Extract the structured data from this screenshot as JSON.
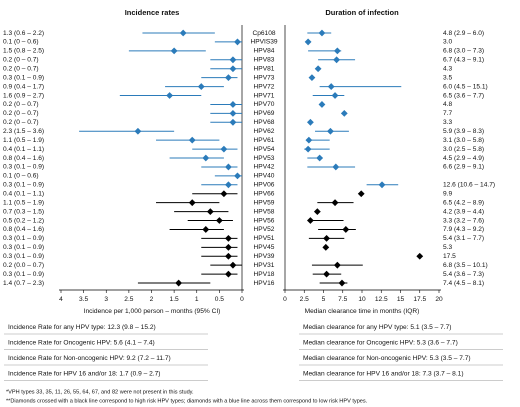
{
  "chart_data": [
    {
      "type": "forest",
      "title": "Incidence rates",
      "xlabel": "Incidence per 1,000 person – months (95% CI)",
      "xlim": [
        4,
        0
      ],
      "xticks": [
        4,
        3.5,
        3,
        2.5,
        2,
        1.5,
        1,
        0.5,
        0
      ],
      "categories": [
        "Cp6108",
        "HPVIS39",
        "HPV84",
        "HPV83",
        "HPV81",
        "HPV73",
        "HPV72",
        "HPV71",
        "HPV70",
        "HPV69",
        "HPV68",
        "HPV62",
        "HPV61",
        "HPV54",
        "HPV53",
        "HPV42",
        "HPV40",
        "HPV06",
        "HPV66",
        "HPV59",
        "HPV58",
        "HPV56",
        "HPV52",
        "HPV51",
        "HPV45",
        "HPV39",
        "HPV31",
        "HPV18",
        "HPV16"
      ],
      "colors": [
        "#2b7bba",
        "#2b7bba",
        "#2b7bba",
        "#2b7bba",
        "#2b7bba",
        "#2b7bba",
        "#2b7bba",
        "#2b7bba",
        "#2b7bba",
        "#2b7bba",
        "#2b7bba",
        "#2b7bba",
        "#2b7bba",
        "#2b7bba",
        "#2b7bba",
        "#2b7bba",
        "#2b7bba",
        "#2b7bba",
        "#000000",
        "#000000",
        "#000000",
        "#000000",
        "#000000",
        "#000000",
        "#000000",
        "#000000",
        "#000000",
        "#000000",
        "#000000"
      ],
      "values": [
        1.3,
        0.1,
        1.5,
        0.2,
        0.2,
        0.3,
        0.9,
        1.6,
        0.2,
        0.2,
        0.2,
        2.3,
        1.1,
        0.4,
        0.8,
        0.3,
        0.1,
        0.3,
        0.4,
        1.1,
        0.7,
        0.5,
        0.8,
        0.3,
        0.3,
        0.3,
        0.2,
        0.3,
        1.4
      ],
      "lower": [
        0.6,
        0,
        0.8,
        0,
        0,
        0.1,
        0.4,
        0.9,
        0,
        0,
        0,
        1.5,
        0.5,
        0.1,
        0.4,
        0.1,
        0,
        0.1,
        0.1,
        0.5,
        0.3,
        0.2,
        0.4,
        0.1,
        0.1,
        0.1,
        0.0,
        0.1,
        0.7
      ],
      "upper": [
        2.2,
        0.6,
        2.5,
        0.7,
        0.7,
        0.9,
        1.7,
        2.7,
        0.7,
        0.7,
        0.7,
        3.6,
        1.9,
        1.1,
        1.6,
        0.9,
        0.6,
        0.9,
        1.1,
        1.9,
        1.5,
        1.2,
        1.6,
        0.9,
        0.9,
        0.9,
        0.7,
        0.9,
        2.3
      ],
      "value_labels": [
        "1.3 (0.6 – 2.2)",
        "0.1 (0 – 0.6)",
        "1.5 (0.8 – 2.5)",
        "0.2 (0 – 0.7)",
        "0.2 (0 – 0.7)",
        "0.3 (0.1 – 0.9)",
        "0.9 (0.4 – 1.7)",
        "1.6 (0.9 – 2.7)",
        "0.2 (0 – 0.7)",
        "0.2 (0 – 0.7)",
        "0.2 (0 – 0.7)",
        "2.3 (1.5 – 3.6)",
        "1.1 (0.5 – 1.9)",
        "0.4 (0.1 – 1.1)",
        "0.8 (0.4 – 1.6)",
        "0.3 (0.1 – 0.9)",
        "0.1 (0 – 0.6)",
        "0.3 (0.1 – 0.9)",
        "0.4 (0.1 – 1.1)",
        "1.1 (0.5 – 1.9)",
        "0.7 (0.3 – 1.5)",
        "0.5 (0.2 – 1.2)",
        "0.8 (0.4 – 1.6)",
        "0.3 (0.1 – 0.9)",
        "0.3 (0.1 – 0.9)",
        "0.3 (0.1 – 0.9)",
        "0.2 (0.0 – 0.7)",
        "0.3 (0.1 – 0.9)",
        "1.4 (0.7 – 2.3)"
      ],
      "summary": [
        "Incidence Rate for any HPV type: 12.3 (9.8 – 15.2)",
        "Incidence Rate for Oncogenic HPV: 5.6 (4.1 – 7.4)",
        "Incidence Rate for Non-oncogenic HPV: 9.2 (7.2 – 11.7)",
        "Incidence Rate for HPV 16 and/or 18: 1.7 (0.9 – 2.7)"
      ]
    },
    {
      "type": "forest",
      "title": "Duration of infection",
      "xlabel": "Median clearance time in months (IQR)",
      "xlim": [
        0,
        20
      ],
      "xticks": [
        0,
        2.5,
        5,
        7.5,
        10,
        12.5,
        15,
        17.5,
        20
      ],
      "values": [
        4.8,
        3.0,
        6.8,
        6.7,
        4.3,
        3.5,
        6.0,
        6.5,
        4.8,
        7.7,
        3.3,
        5.9,
        3.1,
        3.0,
        4.5,
        6.6,
        null,
        12.6,
        9.9,
        6.5,
        4.2,
        3.3,
        7.9,
        5.4,
        5.3,
        17.5,
        6.8,
        5.4,
        7.4
      ],
      "lower": [
        2.9,
        null,
        3.0,
        4.3,
        null,
        null,
        4.5,
        3.6,
        null,
        null,
        null,
        3.9,
        3.0,
        2.5,
        2.9,
        2.9,
        null,
        10.6,
        null,
        4.2,
        3.9,
        3.2,
        4.3,
        3.1,
        null,
        null,
        3.5,
        3.6,
        4.5
      ],
      "upper": [
        6.0,
        null,
        7.3,
        9.1,
        null,
        null,
        15.1,
        7.7,
        null,
        null,
        null,
        8.3,
        5.8,
        5.8,
        4.9,
        9.1,
        null,
        14.7,
        null,
        8.9,
        4.4,
        7.6,
        9.2,
        7.7,
        null,
        null,
        10.1,
        7.3,
        8.1
      ],
      "value_labels": [
        "4.8 (2.9 – 6.0)",
        "3.0",
        "6.8 (3.0 – 7.3)",
        "6.7 (4.3 – 9.1)",
        "4.3",
        "3.5",
        "6.0 (4.5 – 15.1)",
        "6.5 (3.6 – 7.7)",
        "4.8",
        "7.7",
        "3.3",
        "5.9 (3.9 – 8.3)",
        "3.1 (3.0 – 5.8)",
        "3.0 (2.5 – 5.8)",
        "4.5 (2.9 – 4.9)",
        "6.6 (2.9 – 9.1)",
        null,
        "12.6 (10.6 – 14.7)",
        "9.9",
        "6.5 (4.2 – 8.9)",
        "4.2 (3.9 – 4.4)",
        "3.3 (3.2 – 7.6)",
        "7.9 (4.3 – 9.2)",
        "5.4 (3.1 – 7.7)",
        "5.3",
        "17.5",
        "6.8 (3.5 – 10.1)",
        "5.4 (3.6 – 7.3)",
        "7.4 (4.5 – 8.1)"
      ],
      "summary": [
        "Median clearance for any HPV type: 5.1 (3.5 – 7.7)",
        "Median clearance for Oncogenic HPV: 5.3 (3.6 – 7.7)",
        "Median clearance for Non-oncogenic HPV: 5.3 (3.5 – 7.7)",
        "Median clearance for HPV 16 and/or 18: 7.3 (3.7 – 8.1)"
      ]
    }
  ],
  "footnotes": [
    "*VPH types 33, 35, 11, 26, 55, 64, 67, and 82 were not present in this study.",
    "**Diamonds crossed with a black line correspond to high risk HPV types; diamonds with a blue line across them correspond to low risk HPV types."
  ]
}
